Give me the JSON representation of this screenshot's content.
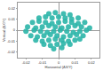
{
  "chart_data": {
    "type": "scatter",
    "x_label": "Horizontal (ΔX/Y)",
    "y_label": "Vertical (ΔX/Y)",
    "color": "#2bb5a8",
    "grid": false,
    "x": [
      -0.006,
      -0.002,
      0.003,
      0.007,
      -0.012,
      -0.008,
      -0.004,
      0,
      0.004,
      0.008,
      0.012,
      -0.016,
      -0.012,
      -0.008,
      -0.004,
      0,
      0.004,
      0.008,
      0.012,
      0.016,
      -0.019,
      -0.014,
      -0.01,
      -0.006,
      -0.002,
      0.002,
      0.006,
      0.01,
      0.014,
      0.019,
      -0.02,
      -0.015,
      -0.011,
      -0.007,
      -0.003,
      0.001,
      0.005,
      0.009,
      0.013,
      0.017,
      -0.017,
      -0.013,
      -0.009,
      -0.005,
      -0.001,
      0.003,
      0.007,
      0.011,
      0.015,
      -0.014,
      -0.01,
      -0.006,
      -0.002,
      0.002,
      0.006,
      0.01,
      0.013,
      -0.009,
      -0.005,
      -0.001,
      0.003,
      0.007,
      -0.003,
      0.002
    ],
    "values": [
      0.015,
      0.016,
      0.015,
      0.014,
      0.011,
      0.012,
      0.011,
      0.012,
      0.011,
      0.01,
      0.011,
      0.007,
      0.008,
      0.007,
      0.006,
      0.007,
      0.008,
      0.007,
      0.006,
      0.007,
      0.003,
      0.002,
      0.003,
      0.004,
      0.003,
      0.002,
      0.003,
      0.004,
      0.003,
      0.002,
      -0.001,
      0.0,
      -0.001,
      -0.002,
      -0.001,
      0.0,
      -0.001,
      -0.002,
      -0.001,
      0.0,
      -0.005,
      -0.006,
      -0.005,
      -0.004,
      -0.005,
      -0.006,
      -0.005,
      -0.004,
      -0.005,
      -0.009,
      -0.01,
      -0.009,
      -0.008,
      -0.009,
      -0.01,
      -0.009,
      -0.008,
      -0.013,
      -0.014,
      -0.013,
      -0.012,
      -0.013,
      -0.017,
      -0.016
    ],
    "xlim": [
      -0.025,
      0.025
    ],
    "xticks": [
      -0.02,
      -0.01,
      0,
      0.01,
      0.02
    ],
    "ylim": [
      -0.025,
      0.025
    ],
    "yticks": [
      -0.02,
      -0.01,
      0,
      0.01,
      0.02
    ]
  }
}
